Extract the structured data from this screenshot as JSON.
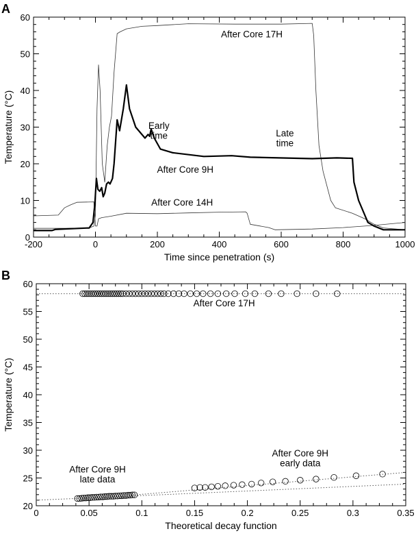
{
  "chart_data": [
    {
      "panel_label": "A",
      "type": "line",
      "xlabel": "Time since penetration (s)",
      "ylabel": "Temperature (°C)",
      "xlim": [
        -200,
        1000
      ],
      "ylim": [
        0,
        60
      ],
      "xticks": [
        "-200",
        "0",
        "200",
        "400",
        "600",
        "800",
        "1000"
      ],
      "yticks": [
        "0",
        "10",
        "20",
        "30",
        "40",
        "50",
        "60"
      ],
      "series": [
        {
          "name": "After Core 17H",
          "weight": "thin",
          "x": [
            -200,
            -100,
            -20,
            -5,
            0,
            5,
            10,
            15,
            22,
            30,
            38,
            45,
            52,
            60,
            70,
            80,
            100,
            150,
            200,
            300,
            450,
            600,
            700,
            705,
            712,
            722,
            735,
            760,
            775,
            830,
            870,
            900,
            930,
            1000
          ],
          "y": [
            2.4,
            2.4,
            2.5,
            3,
            6,
            35,
            47,
            40,
            20,
            15,
            25,
            30,
            33,
            45,
            55.5,
            56,
            56.8,
            57.5,
            57.7,
            58.2,
            58.1,
            58.1,
            58.3,
            55,
            40,
            25,
            18,
            10,
            8,
            6.5,
            5,
            3.5,
            2.5,
            2
          ]
        },
        {
          "name": "After Core 14H",
          "weight": "thin",
          "x": [
            -200,
            -120,
            -100,
            -80,
            -60,
            -5,
            0,
            5,
            10,
            20,
            50,
            100,
            200,
            300,
            400,
            485,
            490,
            500,
            560,
            580,
            700,
            800,
            900,
            1000
          ],
          "y": [
            5.8,
            6,
            8,
            8.8,
            9.5,
            9.6,
            3,
            3,
            5,
            5.3,
            5.7,
            6.5,
            6.4,
            6.6,
            6.8,
            6.9,
            6.5,
            3.5,
            2.6,
            2,
            2.2,
            2.6,
            3.2,
            4
          ]
        },
        {
          "name": "After Core 9H",
          "weight": "thick",
          "x": [
            -200,
            -140,
            -130,
            -20,
            -8,
            -2,
            3,
            8,
            14,
            20,
            25,
            30,
            36,
            42,
            47,
            55,
            60,
            70,
            78,
            90,
            100,
            110,
            130,
            160,
            170,
            175,
            180,
            190,
            210,
            250,
            350,
            440,
            500,
            700,
            780,
            830,
            835,
            850,
            880,
            900,
            930,
            1000
          ],
          "y": [
            1.8,
            1.8,
            2.1,
            2.5,
            4,
            9,
            16,
            13,
            12.5,
            13.5,
            11,
            12,
            14.5,
            15,
            14.5,
            16,
            20,
            32,
            29,
            35,
            41.5,
            35,
            30,
            27,
            28,
            27.5,
            29.5,
            27,
            24,
            23,
            22,
            22.2,
            21.8,
            21.4,
            21.6,
            21.5,
            15,
            10,
            4,
            3,
            2,
            2
          ]
        }
      ],
      "annotations": [
        {
          "text": "After Core 17H",
          "x": 505,
          "y": 54.5
        },
        {
          "text": "Early",
          "x": 205,
          "y": 29.5
        },
        {
          "text": "time",
          "x": 205,
          "y": 26.8
        },
        {
          "text": "Late",
          "x": 612,
          "y": 27.5
        },
        {
          "text": "time",
          "x": 612,
          "y": 24.8
        },
        {
          "text": "After Core 9H",
          "x": 290,
          "y": 17.6
        },
        {
          "text": "After Core 14H",
          "x": 280,
          "y": 8.6
        }
      ]
    },
    {
      "panel_label": "B",
      "type": "scatter",
      "xlabel": "Theoretical decay function",
      "ylabel": "Temperature (°C)",
      "xlim": [
        0,
        0.35
      ],
      "ylim": [
        20,
        60
      ],
      "xticks": [
        "0",
        "0.05",
        "0.1",
        "0.15",
        "0.2",
        "0.25",
        "0.3",
        "0.35"
      ],
      "yticks": [
        "20",
        "25",
        "30",
        "35",
        "40",
        "45",
        "50",
        "55",
        "60"
      ],
      "series": [
        {
          "name": "After Core 17H",
          "x": [
            0.044,
            0.046,
            0.048,
            0.05,
            0.052,
            0.054,
            0.056,
            0.058,
            0.06,
            0.062,
            0.064,
            0.066,
            0.068,
            0.07,
            0.072,
            0.074,
            0.076,
            0.078,
            0.08,
            0.082,
            0.085,
            0.088,
            0.091,
            0.094,
            0.097,
            0.1,
            0.103,
            0.106,
            0.109,
            0.112,
            0.115,
            0.118,
            0.121,
            0.125,
            0.13,
            0.135,
            0.14,
            0.146,
            0.152,
            0.158,
            0.165,
            0.172,
            0.18,
            0.188,
            0.198,
            0.207,
            0.22,
            0.232,
            0.247,
            0.265,
            0.285
          ],
          "y": 58.2
        },
        {
          "name": "After Core 9H late data",
          "x": [
            0.039,
            0.041,
            0.043,
            0.045,
            0.047,
            0.049,
            0.051,
            0.053,
            0.055,
            0.057,
            0.059,
            0.061,
            0.063,
            0.065,
            0.067,
            0.069,
            0.071,
            0.073,
            0.075,
            0.077,
            0.079,
            0.081,
            0.083,
            0.085,
            0.087,
            0.089,
            0.091,
            0.093
          ],
          "y": [
            21.3,
            21.3,
            21.35,
            21.4,
            21.4,
            21.45,
            21.45,
            21.5,
            21.5,
            21.55,
            21.55,
            21.6,
            21.6,
            21.65,
            21.65,
            21.7,
            21.7,
            21.7,
            21.75,
            21.75,
            21.8,
            21.8,
            21.85,
            21.85,
            21.9,
            21.9,
            21.95,
            21.95
          ]
        },
        {
          "name": "After Core 9H early data",
          "x": [
            0.15,
            0.155,
            0.16,
            0.166,
            0.172,
            0.179,
            0.187,
            0.195,
            0.204,
            0.213,
            0.224,
            0.236,
            0.25,
            0.265,
            0.282,
            0.303,
            0.328
          ],
          "y": [
            23.2,
            23.3,
            23.3,
            23.4,
            23.5,
            23.6,
            23.7,
            23.8,
            23.9,
            24.1,
            24.3,
            24.4,
            24.6,
            24.8,
            25.1,
            25.4,
            25.7
          ]
        }
      ],
      "fit_lines": [
        {
          "name": "After Core 17H fit",
          "x": [
            0,
            0.35
          ],
          "y": [
            58.2,
            58.2
          ]
        },
        {
          "name": "After Core 9H late fit",
          "x": [
            0,
            0.35
          ],
          "y": [
            21.0,
            23.9
          ]
        },
        {
          "name": "After Core 9H early fit",
          "x": [
            0.09,
            0.35
          ],
          "y": [
            21.9,
            26.0
          ]
        }
      ],
      "annotations": [
        {
          "text": "After Core 17H",
          "x": 0.178,
          "y": 55.9
        },
        {
          "text": "After Core 9H",
          "x": 0.25,
          "y": 28.9
        },
        {
          "text": "early data",
          "x": 0.25,
          "y": 27.1
        },
        {
          "text": "After Core 9H",
          "x": 0.058,
          "y": 26.0
        },
        {
          "text": "late data",
          "x": 0.058,
          "y": 24.2
        }
      ]
    }
  ]
}
